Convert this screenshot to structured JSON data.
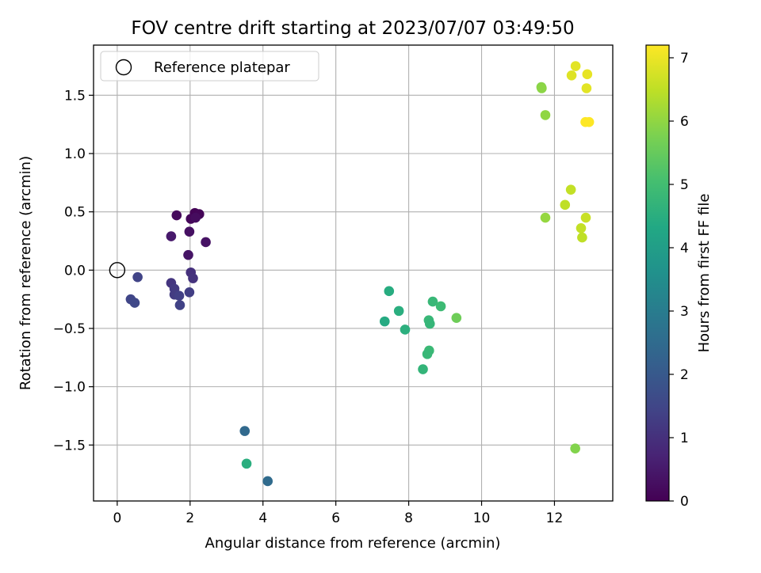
{
  "chart_data": {
    "type": "scatter",
    "title": "FOV centre drift starting at 2023/07/07 03:49:50",
    "xlabel": "Angular distance from reference (arcmin)",
    "ylabel": "Rotation from reference (arcmin)",
    "xlim": [
      -0.65,
      13.6
    ],
    "ylim": [
      -1.98,
      1.93
    ],
    "x_ticks": [
      0,
      2,
      4,
      6,
      8,
      10,
      12
    ],
    "y_ticks": [
      -1.5,
      -1.0,
      -0.5,
      0.0,
      0.5,
      1.0,
      1.5
    ],
    "x_tick_labels": [
      "0",
      "2",
      "4",
      "6",
      "8",
      "10",
      "12"
    ],
    "y_tick_labels": [
      "−1.5",
      "−1.0",
      "−0.5",
      "0.0",
      "0.5",
      "1.0",
      "1.5"
    ],
    "grid": true,
    "legend": {
      "placement": "top-left",
      "entries": [
        "Reference platepar"
      ]
    },
    "reference_point": {
      "x": 0.0,
      "y": 0.0
    },
    "colorbar": {
      "label": "Hours from first FF file",
      "colormap": "viridis",
      "range": [
        0,
        7.2
      ],
      "ticks": [
        0,
        1,
        2,
        3,
        4,
        5,
        6,
        7
      ],
      "tick_labels": [
        "0",
        "1",
        "2",
        "3",
        "4",
        "5",
        "6",
        "7"
      ]
    },
    "points": [
      {
        "x": 2.13,
        "y": 0.49,
        "hours": 0.05
      },
      {
        "x": 2.25,
        "y": 0.48,
        "hours": 0.08
      },
      {
        "x": 2.02,
        "y": 0.44,
        "hours": 0.12
      },
      {
        "x": 1.63,
        "y": 0.47,
        "hours": 0.18
      },
      {
        "x": 2.15,
        "y": 0.45,
        "hours": 0.22
      },
      {
        "x": 1.98,
        "y": 0.33,
        "hours": 0.3
      },
      {
        "x": 2.43,
        "y": 0.24,
        "hours": 0.35
      },
      {
        "x": 1.95,
        "y": 0.13,
        "hours": 0.4
      },
      {
        "x": 1.48,
        "y": 0.29,
        "hours": 0.5
      },
      {
        "x": 2.02,
        "y": -0.02,
        "hours": 1.0
      },
      {
        "x": 2.08,
        "y": -0.07,
        "hours": 1.05
      },
      {
        "x": 1.48,
        "y": -0.11,
        "hours": 1.1
      },
      {
        "x": 1.57,
        "y": -0.16,
        "hours": 1.2
      },
      {
        "x": 1.57,
        "y": -0.21,
        "hours": 1.25
      },
      {
        "x": 1.98,
        "y": -0.19,
        "hours": 1.3
      },
      {
        "x": 1.7,
        "y": -0.22,
        "hours": 1.35
      },
      {
        "x": 1.72,
        "y": -0.3,
        "hours": 1.4
      },
      {
        "x": 0.56,
        "y": -0.06,
        "hours": 1.45
      },
      {
        "x": 0.37,
        "y": -0.25,
        "hours": 1.5
      },
      {
        "x": 0.48,
        "y": -0.28,
        "hours": 1.55
      },
      {
        "x": 3.5,
        "y": -1.38,
        "hours": 2.45
      },
      {
        "x": 4.13,
        "y": -1.81,
        "hours": 2.5
      },
      {
        "x": 3.55,
        "y": -1.66,
        "hours": 4.5
      },
      {
        "x": 7.46,
        "y": -0.18,
        "hours": 4.45
      },
      {
        "x": 7.73,
        "y": -0.35,
        "hours": 4.5
      },
      {
        "x": 7.34,
        "y": -0.44,
        "hours": 4.4
      },
      {
        "x": 7.9,
        "y": -0.51,
        "hours": 4.55
      },
      {
        "x": 8.66,
        "y": -0.27,
        "hours": 4.8
      },
      {
        "x": 8.88,
        "y": -0.31,
        "hours": 4.9
      },
      {
        "x": 8.55,
        "y": -0.43,
        "hours": 4.8
      },
      {
        "x": 8.58,
        "y": -0.46,
        "hours": 4.75
      },
      {
        "x": 8.56,
        "y": -0.69,
        "hours": 4.85
      },
      {
        "x": 8.51,
        "y": -0.72,
        "hours": 4.8
      },
      {
        "x": 8.39,
        "y": -0.85,
        "hours": 4.7
      },
      {
        "x": 9.31,
        "y": -0.41,
        "hours": 5.6
      },
      {
        "x": 11.64,
        "y": 1.57,
        "hours": 5.9
      },
      {
        "x": 11.65,
        "y": 1.56,
        "hours": 5.95
      },
      {
        "x": 11.75,
        "y": 1.33,
        "hours": 6.0
      },
      {
        "x": 11.75,
        "y": 0.45,
        "hours": 6.05
      },
      {
        "x": 12.57,
        "y": -1.53,
        "hours": 5.85
      },
      {
        "x": 12.29,
        "y": 0.56,
        "hours": 6.5
      },
      {
        "x": 12.45,
        "y": 0.69,
        "hours": 6.55
      },
      {
        "x": 12.86,
        "y": 0.45,
        "hours": 6.6
      },
      {
        "x": 12.73,
        "y": 0.36,
        "hours": 6.55
      },
      {
        "x": 12.76,
        "y": 0.28,
        "hours": 6.5
      },
      {
        "x": 12.47,
        "y": 1.67,
        "hours": 6.85
      },
      {
        "x": 12.58,
        "y": 1.75,
        "hours": 6.9
      },
      {
        "x": 12.9,
        "y": 1.68,
        "hours": 6.95
      },
      {
        "x": 12.88,
        "y": 1.56,
        "hours": 6.9
      },
      {
        "x": 12.85,
        "y": 1.27,
        "hours": 7.2
      },
      {
        "x": 12.95,
        "y": 1.27,
        "hours": 7.2
      }
    ]
  }
}
